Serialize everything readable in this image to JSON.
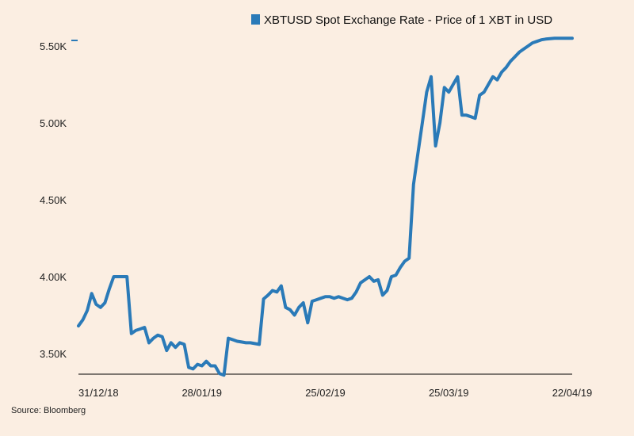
{
  "source": "Source: Bloomberg",
  "colors": {
    "background": "#fbeee2",
    "line": "#2a7ab8",
    "axis": "#000000"
  },
  "chart_data": {
    "type": "line",
    "title": "",
    "xlabel": "",
    "ylabel": "",
    "legend": {
      "position": "top",
      "entries": [
        "XBTUSD Spot Exchange Rate - Price of 1 XBT in USD"
      ]
    },
    "grid": false,
    "x_start": "31/12/18",
    "x_tick_labels": [
      "31/12/18",
      "28/01/19",
      "25/02/19",
      "25/03/19",
      "22/04/19"
    ],
    "y_tick_labels": [
      "3.50K",
      "4.00K",
      "4.50K",
      "5.00K",
      "5.50K"
    ],
    "y_ticks": [
      3500,
      4000,
      4500,
      5000,
      5500
    ],
    "xlim": [
      "31/12/18",
      "22/04/19"
    ],
    "ylim": [
      3350,
      5550
    ],
    "series": [
      {
        "name": "XBTUSD Spot Exchange Rate - Price of 1 XBT in USD",
        "x": [
          "31/12/18",
          "01/01/19",
          "02/01/19",
          "03/01/19",
          "04/01/19",
          "05/01/19",
          "06/01/19",
          "07/01/19",
          "08/01/19",
          "09/01/19",
          "10/01/19",
          "11/01/19",
          "12/01/19",
          "13/01/19",
          "14/01/19",
          "15/01/19",
          "16/01/19",
          "17/01/19",
          "18/01/19",
          "19/01/19",
          "20/01/19",
          "21/01/19",
          "22/01/19",
          "23/01/19",
          "24/01/19",
          "25/01/19",
          "26/01/19",
          "27/01/19",
          "28/01/19",
          "29/01/19",
          "30/01/19",
          "31/01/19",
          "01/02/19",
          "02/02/19",
          "03/02/19",
          "04/02/19",
          "05/02/19",
          "06/02/19",
          "07/02/19",
          "08/02/19",
          "09/02/19",
          "10/02/19",
          "11/02/19",
          "12/02/19",
          "13/02/19",
          "14/02/19",
          "15/02/19",
          "16/02/19",
          "17/02/19",
          "18/02/19",
          "19/02/19",
          "20/02/19",
          "21/02/19",
          "22/02/19",
          "23/02/19",
          "24/02/19",
          "25/02/19",
          "26/02/19",
          "27/02/19",
          "28/02/19",
          "01/03/19",
          "02/03/19",
          "03/03/19",
          "04/03/19",
          "05/03/19",
          "06/03/19",
          "07/03/19",
          "08/03/19",
          "09/03/19",
          "10/03/19",
          "11/03/19",
          "12/03/19",
          "13/03/19",
          "14/03/19",
          "15/03/19",
          "16/03/19",
          "17/03/19",
          "18/03/19",
          "19/03/19",
          "20/03/19",
          "21/03/19",
          "22/03/19",
          "23/03/19",
          "24/03/19",
          "25/03/19",
          "26/03/19",
          "27/03/19",
          "28/03/19",
          "29/03/19",
          "30/03/19",
          "31/03/19",
          "01/04/19",
          "02/04/19",
          "03/04/19",
          "04/04/19",
          "05/04/19",
          "06/04/19",
          "07/04/19",
          "08/04/19",
          "09/04/19",
          "10/04/19",
          "11/04/19",
          "12/04/19",
          "13/04/19",
          "14/04/19",
          "15/04/19",
          "16/04/19",
          "17/04/19",
          "18/04/19",
          "19/04/19",
          "20/04/19",
          "21/04/19",
          "22/04/19"
        ],
        "values": [
          3680,
          3720,
          3780,
          3890,
          3820,
          3800,
          3830,
          3920,
          4000,
          4000,
          4000,
          4000,
          3630,
          3650,
          3660,
          3670,
          3570,
          3600,
          3620,
          3610,
          3520,
          3570,
          3540,
          3570,
          3560,
          3410,
          3400,
          3430,
          3420,
          3450,
          3420,
          3420,
          3370,
          3360,
          3600,
          3590,
          3580,
          3575,
          3570,
          3570,
          3565,
          3560,
          3855,
          3880,
          3910,
          3900,
          3940,
          3800,
          3785,
          3750,
          3800,
          3830,
          3700,
          3840,
          3850,
          3860,
          3870,
          3870,
          3860,
          3870,
          3860,
          3850,
          3860,
          3900,
          3960,
          3980,
          4000,
          3970,
          3980,
          3880,
          3910,
          4000,
          4010,
          4060,
          4100,
          4120,
          4600,
          4800,
          5000,
          5200,
          5300,
          4850,
          5000,
          5230,
          5200,
          5250,
          5300,
          5050,
          5050,
          5040,
          5030,
          5180,
          5200,
          5250,
          5300,
          5280,
          5330,
          5360,
          5400,
          5430,
          5460,
          5480,
          5500,
          5520,
          5530,
          5540,
          5545,
          5548,
          5550,
          5550,
          5550,
          5550,
          5550
        ]
      }
    ]
  }
}
